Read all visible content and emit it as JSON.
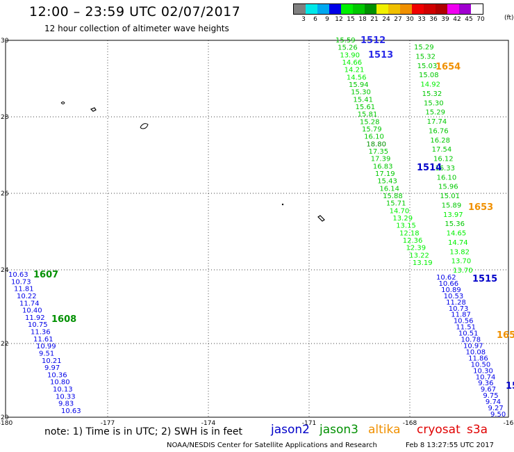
{
  "header": {
    "title": "12:00 – 23:59 UTC 02/07/2017",
    "subtitle": "12 hour collection of altimeter wave heights"
  },
  "legend": {
    "colors": [
      "#808080",
      "#00e8e8",
      "#00a8f0",
      "#0000e8",
      "#00f000",
      "#00c800",
      "#009000",
      "#f0f000",
      "#f0c000",
      "#f09000",
      "#f00000",
      "#d00000",
      "#b00000",
      "#f000f0",
      "#a000d0",
      "#ffffff"
    ],
    "labels": [
      "3",
      "6",
      "9",
      "12",
      "15",
      "18",
      "21",
      "24",
      "27",
      "30",
      "33",
      "36",
      "39",
      "42",
      "45",
      "70"
    ],
    "unit": "(ft)"
  },
  "map": {
    "x_ticks": [
      "-180",
      "-177",
      "-174",
      "-171",
      "-168",
      "-16"
    ],
    "y_ticks": [
      "30",
      "28",
      "26",
      "24",
      "22",
      "20"
    ],
    "lon_range": [
      -180,
      -165
    ],
    "lat_range": [
      20,
      30
    ]
  },
  "satellites": [
    {
      "name": "jason2",
      "color": "#0000c8"
    },
    {
      "name": "jason3",
      "color": "#009000"
    },
    {
      "name": "altika",
      "color": "#f09000"
    },
    {
      "name": "cryosat",
      "color": "#e00000"
    },
    {
      "name": "s3a",
      "color": "#e00000"
    }
  ],
  "tracks": [
    {
      "id": "1512",
      "sat": "jason2",
      "color": "#2a2ae8",
      "values": [
        "15.59",
        "15.26",
        "13.90",
        "14.66",
        "14.21",
        "14.56",
        "15.94",
        "15.30",
        "15.41",
        "15.61",
        "15.81",
        "15.28",
        "15.79",
        "16.10",
        "18.80",
        "17.35",
        "17.39",
        "16.83",
        "17.19",
        "15.43",
        "16.14",
        "15.88",
        "15.71",
        "14.70",
        "13.29",
        "13.15",
        "12.18",
        "12.36",
        "12.39",
        "13.22",
        "13.19"
      ]
    },
    {
      "id": "1513",
      "sat": "jason2",
      "color": "#2a2ae8",
      "values": [
        "15.29",
        "15.32",
        "15.03",
        "15.08",
        "14.92",
        "15.32",
        "15.30",
        "15.29",
        "17.74",
        "16.76",
        "16.28",
        "17.54",
        "16.12",
        "16.33",
        "16.10",
        "15.96",
        "15.01",
        "15.89",
        "13.97",
        "15.36",
        "14.65",
        "14.74",
        "13.82",
        "13.70",
        "13.70"
      ]
    },
    {
      "id": "1514",
      "sat": "jason2",
      "color": "#0000c8",
      "values": []
    },
    {
      "id": "1515",
      "sat": "jason2",
      "color": "#0000c8",
      "values": [
        "10.62",
        "10.66",
        "10.89",
        "10.53",
        "11.28",
        "10.73",
        "11.87",
        "10.56",
        "11.51",
        "10.51",
        "10.78",
        "10.97",
        "10.08",
        "11.86",
        "10.50",
        "10.30",
        "10.74",
        "9.36",
        "9.67",
        "9.75",
        "9.74",
        "9.27",
        "9.50"
      ]
    },
    {
      "id": "1607",
      "sat": "jason3",
      "color": "#009000",
      "values": [
        "10.63",
        "10.73",
        "11.81",
        "10.22",
        "11.74",
        "10.40",
        "11.92",
        "10.75",
        "11.36",
        "11.61",
        "10.99",
        "9.51",
        "10.21",
        "9.97",
        "10.36",
        "10.80",
        "10.13",
        "10.33",
        "9.83",
        "10.63"
      ]
    },
    {
      "id": "1608",
      "sat": "jason3",
      "color": "#009000",
      "values": []
    },
    {
      "id": "1653",
      "sat": "altika",
      "color": "#f09000",
      "values": []
    },
    {
      "id": "1654",
      "sat": "altika",
      "color": "#f09000",
      "values": []
    },
    {
      "id": "165",
      "sat": "altika",
      "color": "#f09000",
      "values": []
    },
    {
      "id": "15",
      "sat": "jason2",
      "color": "#0000c8",
      "values": []
    }
  ],
  "note": "note: 1) Time is in UTC; 2) SWH is in feet",
  "footer": {
    "agency": "NOAA/NESDIS Center for Satellite Applications and Research",
    "timestamp": "Feb  8 13:27:55 UTC 2017"
  }
}
